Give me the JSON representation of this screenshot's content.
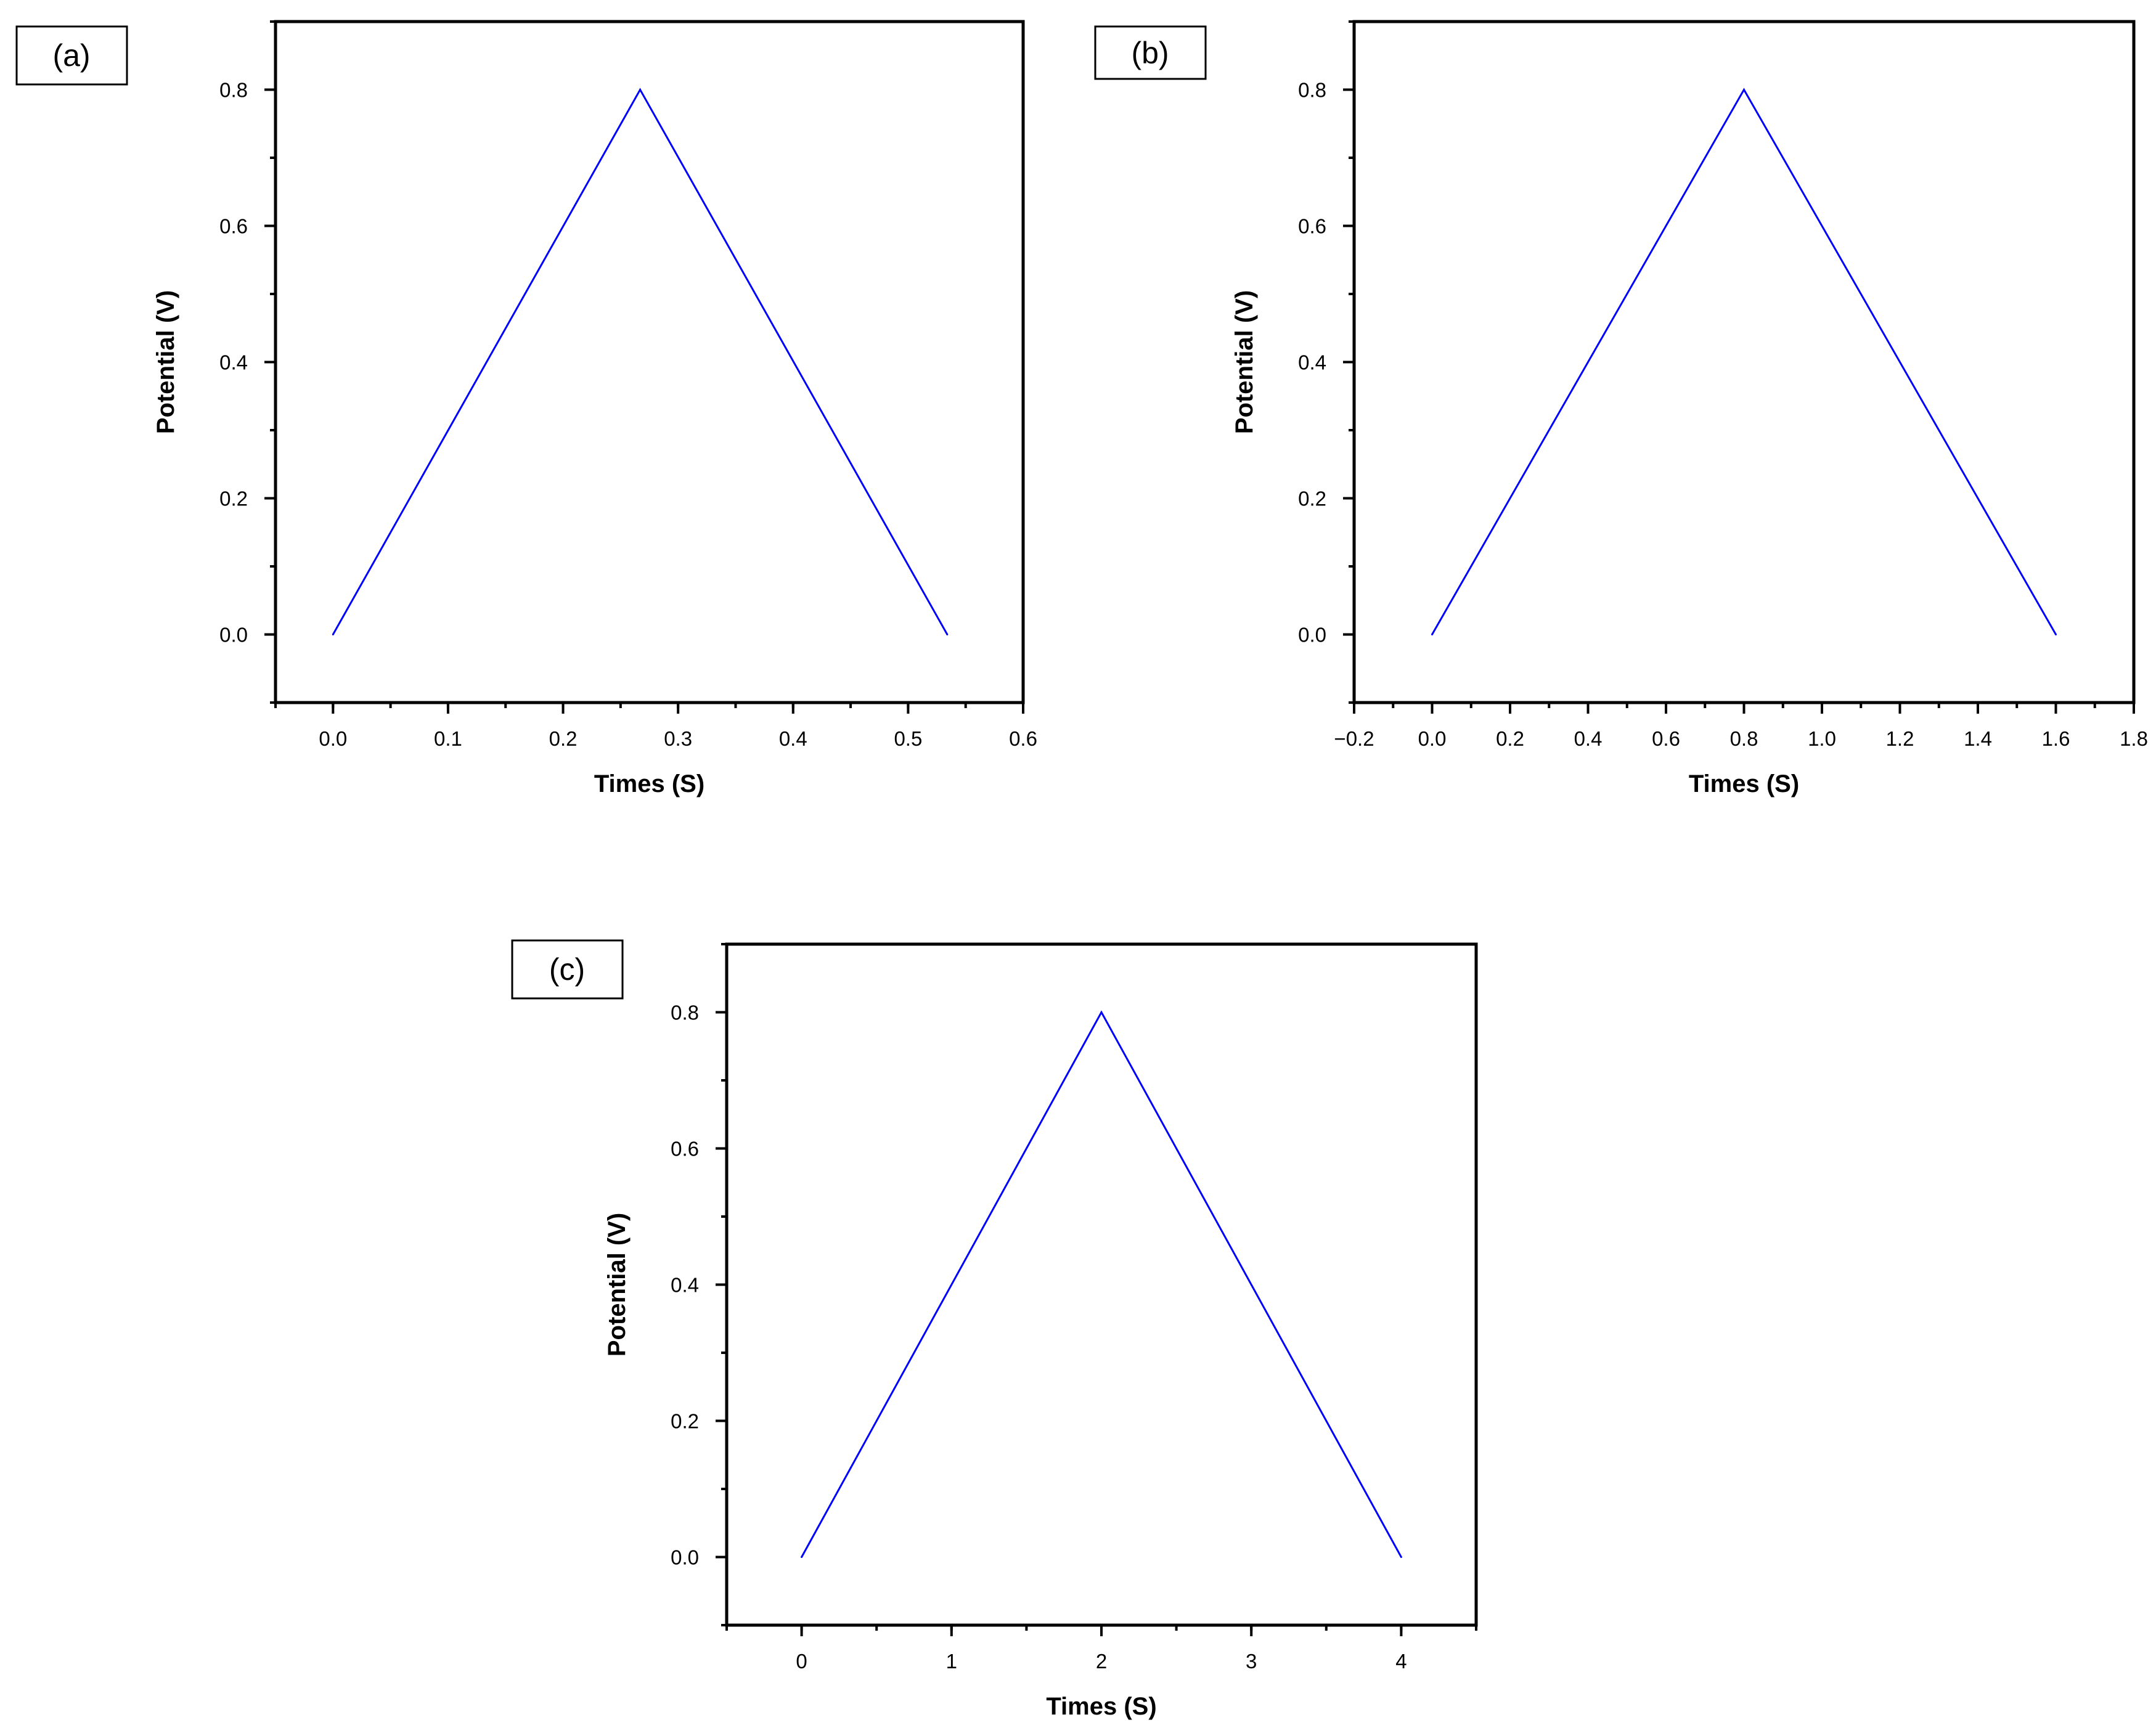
{
  "figure": {
    "panel_labels": [
      "(a)",
      "(b)",
      "(c)"
    ]
  },
  "chart_data": [
    {
      "panel": "(a)",
      "type": "line",
      "xlabel": "Times (S)",
      "ylabel": "Potential (V)",
      "xlim": [
        -0.05,
        0.6
      ],
      "ylim": [
        -0.1,
        0.9
      ],
      "xticks": [
        0.0,
        0.1,
        0.2,
        0.3,
        0.4,
        0.5,
        0.6
      ],
      "xtick_labels": [
        "0.0",
        "0.1",
        "0.2",
        "0.3",
        "0.4",
        "0.5",
        "0.6"
      ],
      "yticks": [
        0.0,
        0.2,
        0.4,
        0.6,
        0.8
      ],
      "ytick_labels": [
        "0.0",
        "0.2",
        "0.4",
        "0.6",
        "0.8"
      ],
      "x_minor_step": 0.05,
      "y_minor_step": 0.1,
      "grid": false,
      "line_color": "#0000ff",
      "series": [
        {
          "x": [
            0.0,
            0.267,
            0.534
          ],
          "y": [
            0.0,
            0.8,
            0.0
          ]
        }
      ]
    },
    {
      "panel": "(b)",
      "type": "line",
      "xlabel": "Times (S)",
      "ylabel": "Potential (V)",
      "xlim": [
        -0.2,
        1.8
      ],
      "ylim": [
        -0.1,
        0.9
      ],
      "xticks": [
        -0.2,
        0.0,
        0.2,
        0.4,
        0.6,
        0.8,
        1.0,
        1.2,
        1.4,
        1.6,
        1.8
      ],
      "xtick_labels": [
        "−0.2",
        "0.0",
        "0.2",
        "0.4",
        "0.6",
        "0.8",
        "1.0",
        "1.2",
        "1.4",
        "1.6",
        "1.8"
      ],
      "yticks": [
        0.0,
        0.2,
        0.4,
        0.6,
        0.8
      ],
      "ytick_labels": [
        "0.0",
        "0.2",
        "0.4",
        "0.6",
        "0.8"
      ],
      "x_minor_step": 0.1,
      "y_minor_step": 0.1,
      "grid": false,
      "line_color": "#0000ff",
      "series": [
        {
          "x": [
            0.0,
            0.8,
            1.6
          ],
          "y": [
            0.0,
            0.8,
            0.0
          ]
        }
      ]
    },
    {
      "panel": "(c)",
      "type": "line",
      "xlabel": "Times (S)",
      "ylabel": "Potential (V)",
      "xlim": [
        -0.5,
        4.5
      ],
      "ylim": [
        -0.1,
        0.9
      ],
      "xticks": [
        0,
        1,
        2,
        3,
        4
      ],
      "xtick_labels": [
        "0",
        "1",
        "2",
        "3",
        "4"
      ],
      "yticks": [
        0.0,
        0.2,
        0.4,
        0.6,
        0.8
      ],
      "ytick_labels": [
        "0.0",
        "0.2",
        "0.4",
        "0.6",
        "0.8"
      ],
      "x_minor_step": 0.5,
      "y_minor_step": 0.1,
      "grid": false,
      "line_color": "#0000ff",
      "series": [
        {
          "x": [
            0,
            2,
            4
          ],
          "y": [
            0.0,
            0.8,
            0.0
          ]
        }
      ]
    }
  ]
}
